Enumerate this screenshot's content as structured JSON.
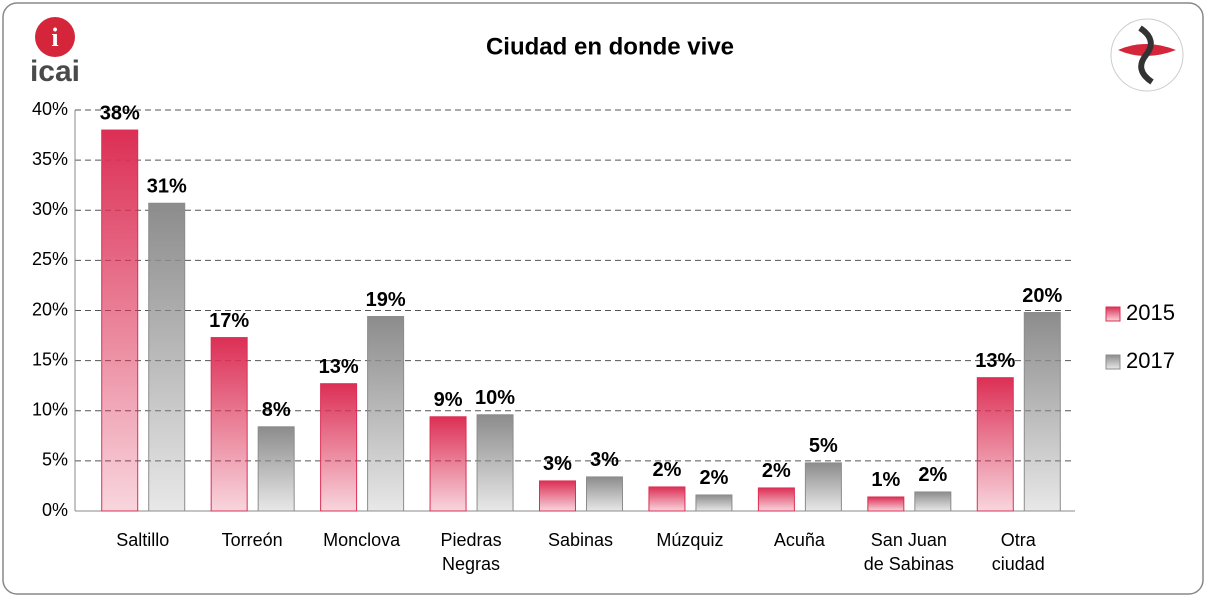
{
  "logo_text": "icai",
  "chart_data": {
    "type": "bar",
    "title": "Ciudad en donde vive",
    "categories": [
      "Saltillo",
      "Torreón",
      "Monclova",
      "Piedras\nNegras",
      "Sabinas",
      "Múzquiz",
      "Acuña",
      "San Juan\nde Sabinas",
      "Otra\nciudad"
    ],
    "series": [
      {
        "name": "2015",
        "color": "#dc2f55",
        "values": [
          38,
          17.3,
          12.7,
          9.4,
          3,
          2.4,
          2.3,
          1.4,
          13.3
        ],
        "value_labels": [
          "38%",
          "17%",
          "13%",
          "9%",
          "3%",
          "2%",
          "2%",
          "1%",
          "13%"
        ]
      },
      {
        "name": "2017",
        "color": "#8c8c8c",
        "values": [
          30.7,
          8.4,
          19.4,
          9.6,
          3.4,
          1.6,
          4.8,
          1.9,
          19.8
        ],
        "value_labels": [
          "31%",
          "8%",
          "19%",
          "10%",
          "3%",
          "2%",
          "5%",
          "2%",
          "20%"
        ]
      }
    ],
    "ylim": [
      0,
      40
    ],
    "yticks": [
      {
        "value": 0,
        "label": "0%"
      },
      {
        "value": 5,
        "label": "5%"
      },
      {
        "value": 10,
        "label": "10%"
      },
      {
        "value": 15,
        "label": "15%"
      },
      {
        "value": 20,
        "label": "20%"
      },
      {
        "value": 25,
        "label": "25%"
      },
      {
        "value": 30,
        "label": "30%"
      },
      {
        "value": 35,
        "label": "35%"
      },
      {
        "value": 40,
        "label": "40%"
      }
    ],
    "grid": true,
    "legend": "right"
  }
}
